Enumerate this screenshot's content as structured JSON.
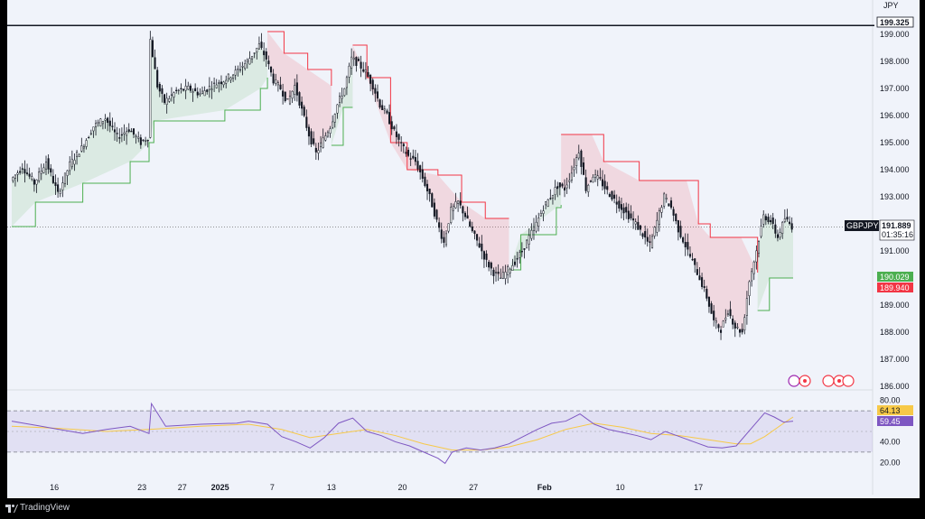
{
  "currency_label": "JPY",
  "watermark": {
    "brand": "TradingView"
  },
  "chart_data": {
    "type": "candlestick",
    "symbol": "GBPJPY",
    "last_price": "191.889",
    "countdown": "01:35:16",
    "level_line": "199.325",
    "supertrend_up": "190.029",
    "supertrend_down": "189.940",
    "y_ticks": [
      "199.000",
      "198.000",
      "197.000",
      "196.000",
      "195.000",
      "194.000",
      "193.000",
      "192.000",
      "191.000",
      "190.000",
      "189.000",
      "188.000",
      "187.000",
      "186.000"
    ],
    "x_ticks": [
      "16",
      "23",
      "27",
      "2025",
      "7",
      "13",
      "20",
      "27",
      "Feb",
      "10",
      "17"
    ],
    "ylim": [
      186,
      199.4
    ],
    "price_path": [
      [
        0,
        193.6
      ],
      [
        5,
        194.1
      ],
      [
        10,
        193.5
      ],
      [
        15,
        194.3
      ],
      [
        20,
        193.1
      ],
      [
        25,
        194.2
      ],
      [
        30,
        194.8
      ],
      [
        35,
        195.6
      ],
      [
        40,
        195.9
      ],
      [
        45,
        195.2
      ],
      [
        50,
        195.5
      ],
      [
        55,
        195.0
      ],
      [
        58,
        195.2
      ],
      [
        59,
        198.8
      ],
      [
        62,
        197.1
      ],
      [
        65,
        196.5
      ],
      [
        70,
        196.9
      ],
      [
        75,
        197.0
      ],
      [
        80,
        196.8
      ],
      [
        85,
        197.1
      ],
      [
        90,
        197.3
      ],
      [
        95,
        197.6
      ],
      [
        100,
        198.0
      ],
      [
        105,
        198.6
      ],
      [
        108,
        198.1
      ],
      [
        111,
        197.3
      ],
      [
        114,
        197.0
      ],
      [
        117,
        196.5
      ],
      [
        120,
        197.1
      ],
      [
        123,
        196.2
      ],
      [
        126,
        195.3
      ],
      [
        129,
        194.6
      ],
      [
        132,
        195.1
      ],
      [
        135,
        195.6
      ],
      [
        138,
        196.4
      ],
      [
        141,
        197.0
      ],
      [
        144,
        198.1
      ],
      [
        147,
        197.9
      ],
      [
        150,
        197.6
      ],
      [
        153,
        197.1
      ],
      [
        156,
        196.4
      ],
      [
        159,
        196.0
      ],
      [
        162,
        195.4
      ],
      [
        165,
        194.9
      ],
      [
        168,
        194.5
      ],
      [
        171,
        194.3
      ],
      [
        174,
        193.7
      ],
      [
        177,
        193.0
      ],
      [
        180,
        192.1
      ],
      [
        183,
        191.3
      ],
      [
        186,
        192.5
      ],
      [
        189,
        192.8
      ],
      [
        192,
        192.3
      ],
      [
        195,
        191.7
      ],
      [
        198,
        191.2
      ],
      [
        201,
        190.6
      ],
      [
        204,
        190.2
      ],
      [
        207,
        190.0
      ],
      [
        210,
        190.3
      ],
      [
        213,
        190.6
      ],
      [
        216,
        191.0
      ],
      [
        219,
        191.5
      ],
      [
        222,
        192.0
      ],
      [
        225,
        192.6
      ],
      [
        228,
        193.0
      ],
      [
        231,
        193.4
      ],
      [
        234,
        193.3
      ],
      [
        237,
        193.9
      ],
      [
        240,
        194.7
      ],
      [
        243,
        193.3
      ],
      [
        246,
        193.8
      ],
      [
        249,
        193.6
      ],
      [
        252,
        193.2
      ],
      [
        255,
        192.9
      ],
      [
        258,
        192.6
      ],
      [
        261,
        192.3
      ],
      [
        264,
        192.0
      ],
      [
        267,
        191.6
      ],
      [
        270,
        191.2
      ],
      [
        273,
        192.1
      ],
      [
        276,
        193.0
      ],
      [
        279,
        192.6
      ],
      [
        282,
        191.8
      ],
      [
        285,
        191.2
      ],
      [
        288,
        190.6
      ],
      [
        291,
        190.0
      ],
      [
        294,
        189.3
      ],
      [
        297,
        188.4
      ],
      [
        300,
        188.1
      ],
      [
        303,
        188.8
      ],
      [
        306,
        188.2
      ],
      [
        309,
        188.0
      ],
      [
        312,
        189.9
      ],
      [
        315,
        191.0
      ],
      [
        318,
        192.3
      ],
      [
        321,
        192.1
      ],
      [
        324,
        191.5
      ],
      [
        327,
        192.2
      ],
      [
        330,
        191.9
      ]
    ],
    "supertrend": [
      {
        "trend": "up",
        "points": [
          [
            0,
            191.9
          ],
          [
            10,
            192.8
          ],
          [
            30,
            193.5
          ],
          [
            50,
            194.3
          ],
          [
            58,
            195.0
          ],
          [
            60,
            195.8
          ],
          [
            90,
            196.2
          ],
          [
            105,
            197.0
          ],
          [
            108,
            197.4
          ]
        ]
      },
      {
        "trend": "down",
        "points": [
          [
            108,
            199.1
          ],
          [
            115,
            198.3
          ],
          [
            125,
            197.7
          ],
          [
            135,
            197.1
          ]
        ]
      },
      {
        "trend": "up",
        "points": [
          [
            135,
            194.9
          ],
          [
            140,
            196.3
          ],
          [
            144,
            196.3
          ]
        ]
      },
      {
        "trend": "down",
        "points": [
          [
            144,
            198.6
          ],
          [
            150,
            197.4
          ],
          [
            160,
            195.0
          ],
          [
            167,
            194.0
          ],
          [
            180,
            193.8
          ],
          [
            190,
            192.8
          ],
          [
            200,
            192.2
          ],
          [
            210,
            192.2
          ]
        ]
      },
      {
        "trend": "up",
        "points": [
          [
            210,
            190.3
          ],
          [
            215,
            191.6
          ],
          [
            230,
            192.6
          ],
          [
            232,
            192.7
          ]
        ]
      },
      {
        "trend": "down",
        "points": [
          [
            232,
            195.3
          ],
          [
            245,
            195.3
          ],
          [
            250,
            194.3
          ],
          [
            265,
            193.6
          ],
          [
            285,
            193.6
          ],
          [
            290,
            192.0
          ],
          [
            295,
            191.5
          ],
          [
            308,
            191.5
          ],
          [
            315,
            190.2
          ]
        ]
      },
      {
        "trend": "up",
        "points": [
          [
            315,
            188.8
          ],
          [
            320,
            190.0
          ],
          [
            330,
            190.0
          ]
        ]
      }
    ],
    "rsi": {
      "ticks": [
        "80.00",
        "40.00",
        "20.00"
      ],
      "current": "59.45",
      "ma_value": "64.13",
      "ylim": [
        15,
        85
      ],
      "overbought": 70,
      "oversold": 30,
      "path": [
        [
          0,
          60
        ],
        [
          10,
          56
        ],
        [
          20,
          52
        ],
        [
          30,
          48
        ],
        [
          40,
          52
        ],
        [
          50,
          55
        ],
        [
          58,
          48
        ],
        [
          59,
          77
        ],
        [
          65,
          55
        ],
        [
          80,
          57
        ],
        [
          95,
          58
        ],
        [
          100,
          60
        ],
        [
          108,
          57
        ],
        [
          114,
          45
        ],
        [
          120,
          40
        ],
        [
          126,
          34
        ],
        [
          132,
          44
        ],
        [
          138,
          58
        ],
        [
          144,
          63
        ],
        [
          150,
          50
        ],
        [
          156,
          46
        ],
        [
          162,
          40
        ],
        [
          168,
          36
        ],
        [
          174,
          30
        ],
        [
          180,
          24
        ],
        [
          183,
          19
        ],
        [
          186,
          30
        ],
        [
          192,
          34
        ],
        [
          198,
          32
        ],
        [
          204,
          34
        ],
        [
          210,
          38
        ],
        [
          216,
          45
        ],
        [
          222,
          52
        ],
        [
          228,
          58
        ],
        [
          234,
          60
        ],
        [
          240,
          67
        ],
        [
          246,
          57
        ],
        [
          252,
          52
        ],
        [
          258,
          49
        ],
        [
          264,
          46
        ],
        [
          270,
          42
        ],
        [
          276,
          50
        ],
        [
          282,
          45
        ],
        [
          288,
          40
        ],
        [
          294,
          35
        ],
        [
          300,
          34
        ],
        [
          306,
          36
        ],
        [
          312,
          52
        ],
        [
          318,
          68
        ],
        [
          322,
          64
        ],
        [
          326,
          59
        ],
        [
          330,
          60
        ]
      ],
      "ma_path": [
        [
          0,
          55
        ],
        [
          20,
          53
        ],
        [
          40,
          50
        ],
        [
          58,
          52
        ],
        [
          80,
          55
        ],
        [
          100,
          57
        ],
        [
          114,
          52
        ],
        [
          126,
          44
        ],
        [
          138,
          48
        ],
        [
          150,
          52
        ],
        [
          162,
          46
        ],
        [
          174,
          38
        ],
        [
          186,
          32
        ],
        [
          198,
          32
        ],
        [
          210,
          35
        ],
        [
          222,
          42
        ],
        [
          234,
          52
        ],
        [
          246,
          58
        ],
        [
          258,
          54
        ],
        [
          270,
          48
        ],
        [
          282,
          46
        ],
        [
          294,
          42
        ],
        [
          306,
          38
        ],
        [
          312,
          38
        ],
        [
          318,
          45
        ],
        [
          326,
          58
        ],
        [
          330,
          64
        ]
      ]
    }
  }
}
